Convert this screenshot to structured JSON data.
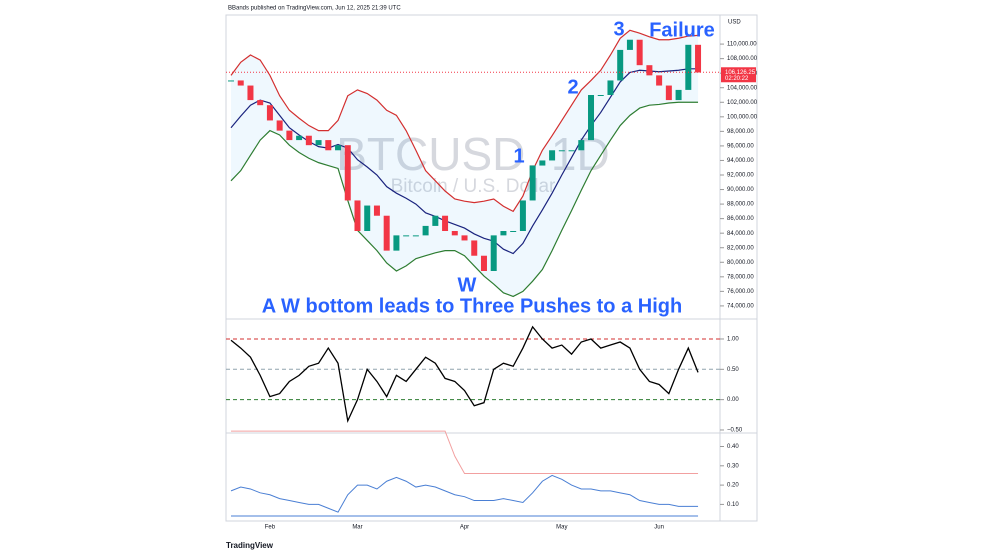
{
  "header": {
    "published": "BBands published on TradingView.com, Jun 12, 2025 21:39 UTC",
    "logo": "TradingView"
  },
  "chart_data": [
    {
      "type": "candlestick",
      "currency": "USD",
      "watermark": "BTCUSD, 1D",
      "watermark_sub": "Bitcoin / U.S. Dollar",
      "categories": [
        null,
        null,
        null,
        null,
        "Feb",
        null,
        null,
        null,
        null,
        null,
        null,
        null,
        null,
        "Mar",
        null,
        null,
        null,
        null,
        null,
        null,
        null,
        null,
        null,
        null,
        "Apr",
        null,
        null,
        null,
        null,
        null,
        null,
        null,
        null,
        null,
        "May",
        null,
        null,
        null,
        null,
        null,
        null,
        null,
        null,
        null,
        "Jun",
        null,
        null,
        null,
        null
      ],
      "close": [
        105000,
        104300,
        102300,
        101600,
        99500,
        98100,
        96800,
        97400,
        96100,
        96800,
        95400,
        96100,
        88500,
        84300,
        87800,
        86400,
        81600,
        83700,
        83700,
        83700,
        85000,
        86400,
        84300,
        83700,
        83000,
        80900,
        78800,
        83700,
        84300,
        84300,
        88500,
        93300,
        94000,
        95400,
        95400,
        95400,
        96800,
        103000,
        103000,
        105000,
        109200,
        110600,
        107100,
        105700,
        104300,
        102300,
        103700,
        109900,
        106100
      ],
      "series": [
        {
          "name": "Upper",
          "color": "#d32f2f",
          "values": [
            105700,
            107500,
            108500,
            107800,
            105700,
            102900,
            100900,
            99800,
            98800,
            98100,
            98100,
            99500,
            102900,
            103700,
            103200,
            102300,
            100900,
            100200,
            98100,
            95400,
            92600,
            91200,
            89800,
            88700,
            88400,
            88200,
            88400,
            88700,
            87700,
            87000,
            89100,
            92600,
            95400,
            97400,
            99500,
            101600,
            103700,
            105000,
            106400,
            108500,
            110800,
            111900,
            111500,
            111000,
            110600,
            110600,
            110800,
            111100,
            111200
          ]
        },
        {
          "name": "Basis",
          "color": "#1a237e",
          "values": [
            98500,
            100100,
            101600,
            102300,
            101900,
            100200,
            98500,
            97500,
            96600,
            95900,
            95700,
            96200,
            95700,
            94100,
            93100,
            92000,
            90400,
            89500,
            88800,
            88000,
            86800,
            86300,
            85700,
            85200,
            84700,
            83900,
            83300,
            82900,
            81800,
            81200,
            82600,
            85000,
            87200,
            89500,
            92000,
            94400,
            96800,
            98800,
            100600,
            102700,
            104800,
            106100,
            106400,
            106300,
            106200,
            106300,
            106400,
            106600,
            106600
          ]
        },
        {
          "name": "Lower",
          "color": "#2e7d32",
          "values": [
            91200,
            92600,
            94700,
            96800,
            98100,
            97500,
            96100,
            95100,
            94300,
            93700,
            93300,
            92900,
            88500,
            84400,
            83000,
            81600,
            79900,
            78800,
            79500,
            80500,
            80900,
            81300,
            81600,
            81600,
            80900,
            79500,
            78100,
            77000,
            75800,
            75300,
            76000,
            77400,
            79000,
            81600,
            84400,
            87100,
            89900,
            92600,
            94700,
            96800,
            98800,
            100200,
            101200,
            101600,
            101700,
            101900,
            102000,
            102000,
            102000
          ]
        }
      ],
      "last_price": {
        "value": 106126.25,
        "label": "106,126.25"
      },
      "countdown": "02:20:22",
      "ylim": [
        72200,
        114000
      ],
      "yticks": [
        {
          "value": 74000,
          "label": "74,000.00"
        },
        {
          "value": 76000,
          "label": "76,000.00"
        },
        {
          "value": 78000,
          "label": "78,000.00"
        },
        {
          "value": 80000,
          "label": "80,000.00"
        },
        {
          "value": 82000,
          "label": "82,000.00"
        },
        {
          "value": 84000,
          "label": "84,000.00"
        },
        {
          "value": 86000,
          "label": "86,000.00"
        },
        {
          "value": 88000,
          "label": "88,000.00"
        },
        {
          "value": 90000,
          "label": "90,000.00"
        },
        {
          "value": 92000,
          "label": "92,000.00"
        },
        {
          "value": 94000,
          "label": "94,000.00"
        },
        {
          "value": 96000,
          "label": "96,000.00"
        },
        {
          "value": 98000,
          "label": "98,000.00"
        },
        {
          "value": 100000,
          "label": "100,000.00"
        },
        {
          "value": 102000,
          "label": "102,000.00"
        },
        {
          "value": 104000,
          "label": "104,000.00"
        },
        {
          "value": 106000,
          "label": "106,000.00"
        },
        {
          "value": 108000,
          "label": "108,000.00"
        },
        {
          "value": 110000,
          "label": "110,000.00"
        }
      ],
      "annotations": [
        "1",
        "2",
        "3",
        "Failure",
        "W",
        "A W bottom leads to Three Pushes to a High"
      ]
    },
    {
      "type": "line",
      "series": [
        {
          "name": "%B",
          "color": "#000000",
          "values": [
            0.98,
            0.85,
            0.7,
            0.4,
            0.05,
            0.1,
            0.3,
            0.4,
            0.55,
            0.6,
            0.85,
            0.6,
            -0.35,
            0.0,
            0.5,
            0.3,
            0.05,
            0.4,
            0.3,
            0.5,
            0.7,
            0.6,
            0.35,
            0.3,
            0.15,
            -0.1,
            -0.05,
            0.5,
            0.6,
            0.55,
            0.85,
            1.2,
            1.0,
            0.85,
            0.9,
            0.75,
            0.95,
            1.0,
            0.85,
            0.9,
            0.95,
            0.85,
            0.5,
            0.3,
            0.25,
            0.1,
            0.5,
            0.85,
            0.45
          ]
        }
      ],
      "ylim": [
        -0.55,
        1.28
      ],
      "yticks": [
        {
          "value": 1,
          "label": "1.00"
        },
        {
          "value": 0.5,
          "label": "0.50"
        },
        {
          "value": 0,
          "label": "0.00"
        },
        {
          "value": -0.5,
          "label": "−0.50"
        }
      ],
      "levels": [
        {
          "value": 1,
          "color": "#d32f2f"
        },
        {
          "value": 0.5,
          "color": "#90a4ae"
        },
        {
          "value": 0,
          "color": "#2e7d32"
        }
      ]
    },
    {
      "type": "line",
      "series": [
        {
          "name": "Bandwidth",
          "color": "#4a7fd4",
          "values": [
            0.17,
            0.19,
            0.18,
            0.16,
            0.15,
            0.13,
            0.12,
            0.11,
            0.1,
            0.1,
            0.08,
            0.06,
            0.15,
            0.2,
            0.2,
            0.18,
            0.22,
            0.24,
            0.22,
            0.19,
            0.2,
            0.19,
            0.17,
            0.15,
            0.14,
            0.12,
            0.12,
            0.12,
            0.13,
            0.12,
            0.11,
            0.16,
            0.22,
            0.25,
            0.23,
            0.2,
            0.18,
            0.18,
            0.17,
            0.17,
            0.16,
            0.15,
            0.12,
            0.11,
            0.1,
            0.1,
            0.09,
            0.09,
            0.09
          ]
        },
        {
          "name": "Highest Expansion",
          "color": "#f2a0a0",
          "values": [
            0.48,
            0.48,
            0.48,
            0.48,
            0.48,
            0.48,
            0.48,
            0.48,
            0.48,
            0.48,
            0.48,
            0.48,
            0.48,
            0.48,
            0.48,
            0.48,
            0.48,
            0.48,
            0.48,
            0.48,
            0.48,
            0.48,
            0.48,
            0.35,
            0.26,
            0.26,
            0.26,
            0.26,
            0.26,
            0.26,
            0.26,
            0.26,
            0.26,
            0.26,
            0.26,
            0.26,
            0.26,
            0.26,
            0.26,
            0.26,
            0.26,
            0.26,
            0.26,
            0.26,
            0.26,
            0.26,
            0.26,
            0.26,
            0.26
          ]
        },
        {
          "name": "Lowest Contraction",
          "color": "#4a7fd4",
          "values": [
            0.04,
            0.04,
            0.04,
            0.04,
            0.04,
            0.04,
            0.04,
            0.04,
            0.04,
            0.04,
            0.04,
            0.04,
            0.04,
            0.04,
            0.04,
            0.04,
            0.04,
            0.04,
            0.04,
            0.04,
            0.04,
            0.04,
            0.04,
            0.04,
            0.04,
            0.04,
            0.04,
            0.04,
            0.04,
            0.04,
            0.04,
            0.04,
            0.04,
            0.04,
            0.04,
            0.04,
            0.04,
            0.04,
            0.04,
            0.04,
            0.04,
            0.04,
            0.04,
            0.04,
            0.04,
            0.04,
            0.04,
            0.04,
            0.04
          ]
        }
      ],
      "ylim": [
        0.014,
        0.47
      ],
      "yticks": [
        {
          "value": 0.4,
          "label": "0.40"
        },
        {
          "value": 0.3,
          "label": "0.30"
        },
        {
          "value": 0.2,
          "label": "0.20"
        },
        {
          "value": 0.1,
          "label": "0.10"
        }
      ]
    }
  ]
}
